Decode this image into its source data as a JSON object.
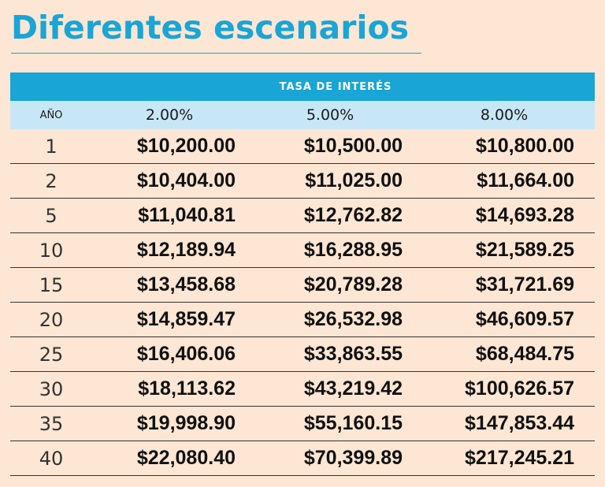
{
  "title": "Diferentes escenarios",
  "chart_data": {
    "type": "table",
    "title": "Diferentes escenarios",
    "band_label": "TASA DE INTERÉS",
    "year_label": "AÑO",
    "rates": [
      "2.00%",
      "5.00%",
      "8.00%"
    ],
    "rows": [
      {
        "year": "1",
        "values": [
          "$10,200.00",
          "$10,500.00",
          "$10,800.00"
        ]
      },
      {
        "year": "2",
        "values": [
          "$10,404.00",
          "$11,025.00",
          "$11,664.00"
        ]
      },
      {
        "year": "5",
        "values": [
          "$11,040.81",
          "$12,762.82",
          "$14,693.28"
        ]
      },
      {
        "year": "10",
        "values": [
          "$12,189.94",
          "$16,288.95",
          "$21,589.25"
        ]
      },
      {
        "year": "15",
        "values": [
          "$13,458.68",
          "$20,789.28",
          "$31,721.69"
        ]
      },
      {
        "year": "20",
        "values": [
          "$14,859.47",
          "$26,532.98",
          "$46,609.57"
        ]
      },
      {
        "year": "25",
        "values": [
          "$16,406.06",
          "$33,863.55",
          "$68,484.75"
        ]
      },
      {
        "year": "30",
        "values": [
          "$18,113.62",
          "$43,219.42",
          "$100,626.57"
        ]
      },
      {
        "year": "35",
        "values": [
          "$19,998.90",
          "$55,160.15",
          "$147,853.44"
        ]
      },
      {
        "year": "40",
        "values": [
          "$22,080.40",
          "$70,399.89",
          "$217,245.21"
        ]
      }
    ]
  }
}
